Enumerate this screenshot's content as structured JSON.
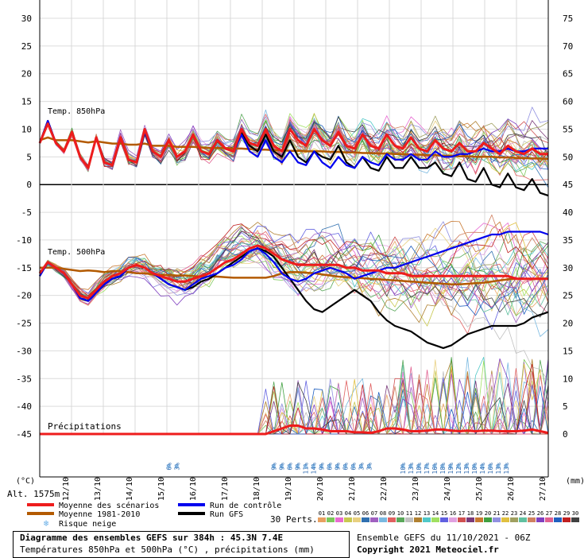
{
  "chart_data": {
    "type": "line",
    "title": "Diagramme des ensembles GEFS sur 384h : 45.3N 7.4E",
    "subtitle": "Températures 850hPa et 500hPa (°C) , précipitations (mm)",
    "y_left_label": "(°C)",
    "y_right_label": "(mm)",
    "altitude": "Alt. 1575m",
    "y_left_ticks": [
      30,
      25,
      20,
      15,
      10,
      5,
      0,
      -5,
      -10,
      -15,
      -20,
      -25,
      -30,
      -35,
      -40,
      -45
    ],
    "y_right_ticks": [
      75,
      70,
      65,
      60,
      55,
      50,
      45,
      40,
      35,
      30,
      25,
      20,
      15,
      10,
      5,
      0
    ],
    "ylim_left": [
      -45,
      30
    ],
    "ylim_right": [
      0,
      75
    ],
    "dates": [
      "12/10",
      "13/10",
      "14/10",
      "15/10",
      "16/10",
      "17/10",
      "18/10",
      "19/10",
      "20/10",
      "21/10",
      "22/10",
      "23/10",
      "24/10",
      "25/10",
      "26/10",
      "27/10"
    ],
    "panels": [
      {
        "label": "Temp. 850hPa"
      },
      {
        "label": "Temp. 500hPa"
      },
      {
        "label": "Précipitations"
      }
    ],
    "steps": 64,
    "series": {
      "t850_mean": [
        7.5,
        11,
        7.5,
        6,
        9.5,
        5,
        3,
        8.5,
        4,
        3.5,
        8.5,
        4.5,
        4,
        10,
        6,
        5,
        8,
        5,
        6,
        9,
        6,
        5.5,
        8,
        6.5,
        6,
        10,
        7.5,
        7,
        10,
        7,
        6,
        10,
        8,
        7,
        10,
        8,
        7,
        9.5,
        7,
        6.5,
        9,
        7,
        6.5,
        9,
        7,
        6.5,
        8.5,
        6.5,
        6,
        8,
        6.5,
        6,
        7.5,
        6,
        6,
        7.5,
        6.5,
        5.5,
        7,
        6,
        5.5,
        6.5,
        5.5,
        5.5
      ],
      "t850_climo": [
        8,
        8.5,
        8,
        8,
        8,
        7.8,
        7.6,
        7.8,
        7.6,
        7.4,
        7.4,
        7.2,
        7.2,
        7.4,
        7,
        7,
        7,
        6.8,
        6.8,
        6.8,
        6.7,
        6.6,
        6.6,
        6.6,
        6.5,
        6.5,
        6.4,
        6.3,
        6.3,
        6.2,
        6.2,
        6.1,
        6.1,
        6,
        6,
        6,
        5.9,
        5.9,
        5.8,
        5.8,
        5.7,
        5.7,
        5.6,
        5.6,
        5.5,
        5.5,
        5.4,
        5.4,
        5.3,
        5.3,
        5.2,
        5.2,
        5.1,
        5.1,
        5,
        5,
        5,
        4.9,
        4.9,
        4.8,
        4.8,
        4.7,
        4.7,
        4.6
      ],
      "t850_control": [
        7.5,
        11.5,
        7.5,
        6,
        9.5,
        5,
        3,
        8.5,
        4,
        3.5,
        8.5,
        4.5,
        4,
        9.5,
        6,
        5,
        8,
        5,
        6,
        9,
        6,
        5.5,
        8,
        6.5,
        6,
        9,
        6,
        5,
        8,
        5,
        4,
        6,
        4,
        3.5,
        6,
        4,
        3,
        5,
        3.5,
        3,
        5,
        4,
        3.5,
        5.5,
        4.5,
        4.5,
        5.5,
        4.5,
        4.5,
        6,
        5,
        5,
        5.5,
        5.5,
        6,
        6.5,
        6,
        6,
        6.5,
        6,
        6,
        6.5,
        6.5,
        6.5
      ],
      "t850_gfs": [
        7.5,
        11.5,
        7.5,
        6,
        9.5,
        5,
        3,
        8.5,
        4,
        3.5,
        8.5,
        4.5,
        4,
        9.5,
        6,
        5,
        8,
        5,
        6,
        9,
        6,
        5.5,
        8,
        6.5,
        6,
        9.5,
        7,
        6,
        9,
        6,
        5,
        8,
        5,
        4,
        6,
        5,
        4.5,
        7,
        4,
        3,
        5,
        3,
        2.5,
        5,
        3,
        3,
        5,
        3,
        3,
        4,
        2,
        1.5,
        4,
        1,
        0.5,
        3,
        0,
        -0.5,
        2,
        -0.5,
        -1,
        1,
        -1.5,
        -2
      ],
      "t500_mean": [
        -16,
        -14,
        -15,
        -16,
        -18,
        -20,
        -20.5,
        -19,
        -17.5,
        -16.5,
        -16,
        -15,
        -14.5,
        -15,
        -16,
        -16.5,
        -17,
        -17.5,
        -17.5,
        -17,
        -16.5,
        -16,
        -15,
        -14,
        -13.5,
        -12.5,
        -11.5,
        -11,
        -11.5,
        -12.5,
        -13.5,
        -14,
        -14.5,
        -14.5,
        -14.5,
        -14.5,
        -14.5,
        -14.5,
        -15,
        -15,
        -15.5,
        -15.5,
        -15.5,
        -16,
        -16,
        -16,
        -16.5,
        -16.5,
        -16.5,
        -16.5,
        -16.5,
        -16.5,
        -16.5,
        -16.5,
        -16.5,
        -16.5,
        -16.5,
        -16.5,
        -16.5,
        -17,
        -17,
        -17,
        -17,
        -17
      ],
      "t500_climo": [
        -15,
        -15,
        -15,
        -15.2,
        -15.4,
        -15.6,
        -15.5,
        -15.6,
        -15.8,
        -15.6,
        -15.6,
        -15.8,
        -16,
        -16,
        -16.2,
        -16.3,
        -16.3,
        -16.4,
        -16.4,
        -16.5,
        -16.6,
        -16.6,
        -16.6,
        -16.7,
        -16.8,
        -16.8,
        -16.8,
        -16.8,
        -16.8,
        -16.5,
        -16,
        -15.8,
        -15.8,
        -15.9,
        -16,
        -16.2,
        -16.4,
        -16.6,
        -16.7,
        -16.8,
        -16.9,
        -17,
        -17.1,
        -17.2,
        -17.3,
        -17.4,
        -17.5,
        -17.6,
        -17.7,
        -17.8,
        -17.9,
        -18,
        -18,
        -17.9,
        -17.8,
        -17.7,
        -17.5,
        -17.3,
        -17.1,
        -17,
        -17,
        -17,
        -17,
        -17
      ],
      "t500_control": [
        -16.5,
        -14,
        -15,
        -16,
        -18,
        -20.5,
        -21,
        -19.5,
        -18,
        -17,
        -16.5,
        -15,
        -14.5,
        -15,
        -16,
        -17,
        -18,
        -18.5,
        -19,
        -18,
        -17,
        -16.5,
        -16,
        -15,
        -14.5,
        -13.5,
        -12,
        -11.5,
        -12.5,
        -14,
        -16,
        -17,
        -17.5,
        -17,
        -16,
        -15.5,
        -15,
        -15.5,
        -16,
        -17,
        -16.5,
        -16,
        -15.5,
        -15,
        -15,
        -14.5,
        -14,
        -13.5,
        -13,
        -12.5,
        -12,
        -11.5,
        -11,
        -10.5,
        -10,
        -9.5,
        -9,
        -9,
        -8.5,
        -8.5,
        -8.5,
        -8.5,
        -8.5,
        -9
      ],
      "t500_gfs": [
        -16.5,
        -14,
        -15,
        -16,
        -18,
        -20.5,
        -21,
        -19.5,
        -18,
        -17,
        -16.5,
        -15,
        -14.5,
        -15,
        -16,
        -17,
        -18,
        -18.5,
        -19,
        -18.5,
        -17.5,
        -17,
        -16,
        -15,
        -14,
        -13,
        -12,
        -11.5,
        -12,
        -13,
        -15,
        -17,
        -19,
        -21,
        -22.5,
        -23,
        -22,
        -21,
        -20,
        -19,
        -20,
        -21,
        -23,
        -24.5,
        -25.5,
        -26,
        -26.5,
        -27.5,
        -28.5,
        -29,
        -29.5,
        -29,
        -28,
        -27,
        -26.5,
        -26,
        -25.5,
        -25.5,
        -25.5,
        -25.5,
        -25,
        -24,
        -23.5,
        -23
      ],
      "precip_mean": [
        0,
        0,
        0,
        0,
        0,
        0,
        0,
        0,
        0,
        0,
        0,
        0,
        0,
        0,
        0,
        0,
        0,
        0,
        0,
        0,
        0,
        0,
        0,
        0,
        0,
        0,
        0,
        0,
        0,
        0.5,
        1,
        1.5,
        1.5,
        1,
        1,
        0.8,
        0.5,
        0.5,
        0.5,
        0.3,
        0.3,
        0.2,
        0.5,
        1,
        1,
        0.8,
        0.5,
        0.5,
        0.6,
        0.8,
        0.8,
        0.6,
        0.5,
        0.6,
        0.5,
        0.6,
        0.6,
        0.5,
        0.5,
        0.5,
        0.6,
        0.8,
        0.5,
        0.2
      ]
    },
    "snow_risk": [
      {
        "step": 16,
        "labels": [
          "6%",
          "3%"
        ]
      },
      {
        "step": 29,
        "labels": [
          "9%",
          "9%",
          "6%",
          "9%",
          "11%",
          "14%",
          "9%",
          "6%",
          "9%",
          "6%",
          "6%",
          "3%",
          "3%"
        ]
      },
      {
        "step": 45,
        "labels": [
          "10%",
          "13%",
          "10%",
          "17%",
          "16%",
          "18%",
          "19%",
          "12%",
          "13%",
          "10%",
          "14%",
          "16%",
          "13%",
          "13%"
        ]
      }
    ],
    "legend": [
      {
        "name": "Moyenne des scénarios",
        "color": "#ee1c1c"
      },
      {
        "name": "Run de contrôle",
        "color": "#0000ee"
      },
      {
        "name": "Moyenne 1981-2010",
        "color": "#b35a00"
      },
      {
        "name": "Run GFS",
        "color": "#000000"
      },
      {
        "name": "Risque neige",
        "color": "#6ab0e8"
      }
    ],
    "perturbations_label": "30 Perts.",
    "perturbation_numbers": [
      "01",
      "02",
      "03",
      "04",
      "05",
      "06",
      "07",
      "08",
      "09",
      "10",
      "11",
      "12",
      "13",
      "14",
      "15",
      "16",
      "17",
      "18",
      "19",
      "20",
      "21",
      "22",
      "23",
      "24",
      "25",
      "26",
      "27",
      "28",
      "29",
      "30"
    ],
    "perturbation_colors": [
      "#e8a060",
      "#7cc85a",
      "#e86ad2",
      "#c8c850",
      "#e8d080",
      "#3070b0",
      "#a060c0",
      "#78b8e0",
      "#e06060",
      "#5aa85a",
      "#c0c0c0",
      "#b08030",
      "#50c8c8",
      "#a0e060",
      "#6060e0",
      "#e0a0e0",
      "#d05050",
      "#7a3a7a",
      "#c87830",
      "#40a040",
      "#9090e0",
      "#e0c040",
      "#a0a060",
      "#60c0a0",
      "#d08060",
      "#8040c0",
      "#e06090",
      "#2060c0",
      "#c02020",
      "#404040"
    ],
    "ensemble_label": "Ensemble GEFS du 11/10/2021 - 06Z",
    "copyright": "Copyright 2021 Meteociel.fr",
    "colors": {
      "mean": "#ee1c1c",
      "control": "#0000ee",
      "climo": "#b35a00",
      "gfs": "#000000",
      "snow": "#6ab0e8"
    }
  }
}
